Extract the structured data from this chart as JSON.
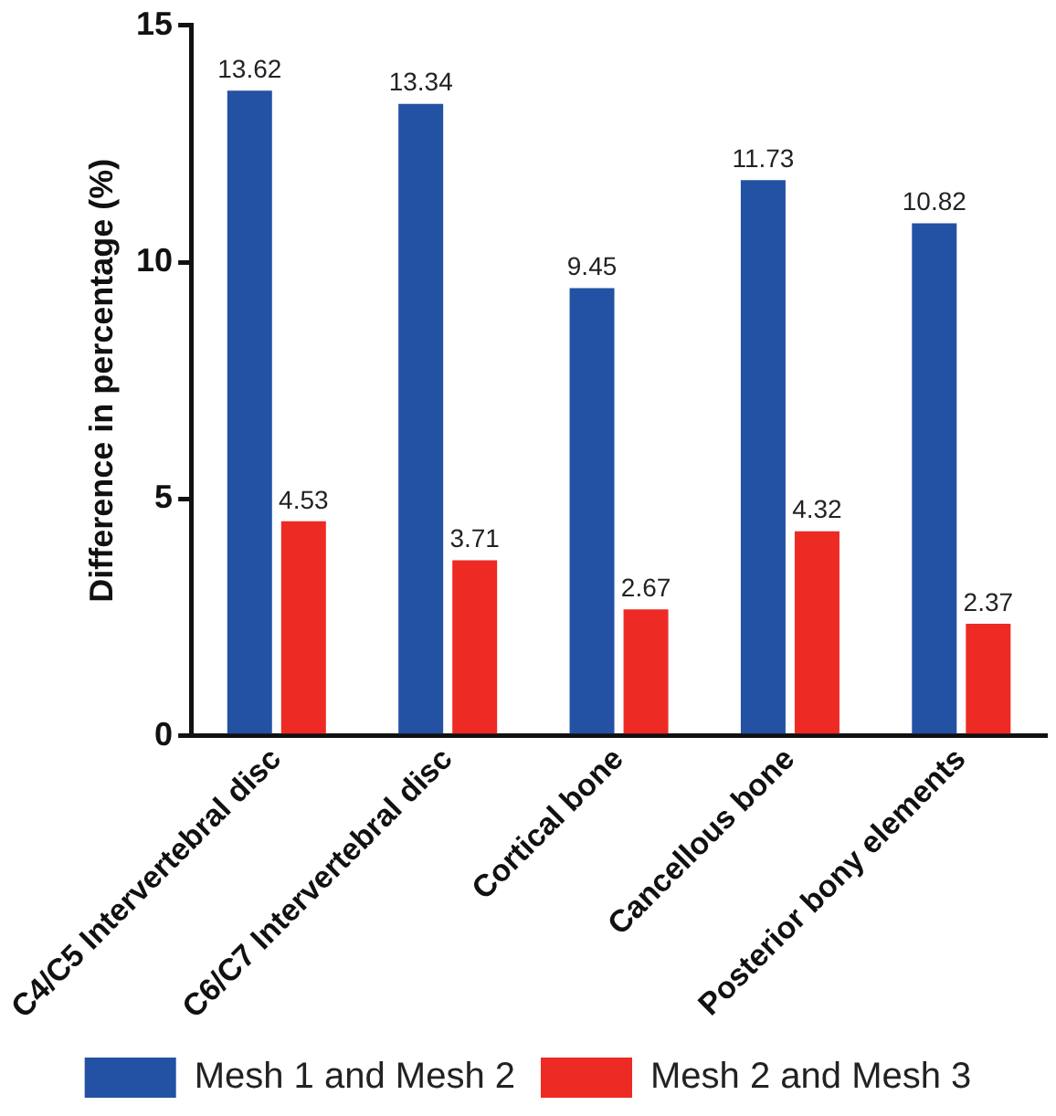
{
  "chart_data": {
    "type": "bar",
    "ylabel": "Difference in percentage (%)",
    "categories": [
      "C4/C5 Intervertebral disc",
      "C6/C7 Intervertebral disc",
      "Cortical bone",
      "Cancellous bone",
      "Posterior bony elements"
    ],
    "series": [
      {
        "name": "Mesh 1 and Mesh 2",
        "color": "#2352a4",
        "values": [
          13.62,
          13.34,
          9.45,
          11.73,
          10.82
        ]
      },
      {
        "name": "Mesh 2 and Mesh 3",
        "color": "#ee2a24",
        "values": [
          4.53,
          3.71,
          2.67,
          4.32,
          2.37
        ]
      }
    ],
    "ylim": [
      0,
      15
    ],
    "yticks": [
      0,
      5,
      10,
      15
    ],
    "grid": false,
    "legend": "bottom",
    "data_labels": true
  }
}
